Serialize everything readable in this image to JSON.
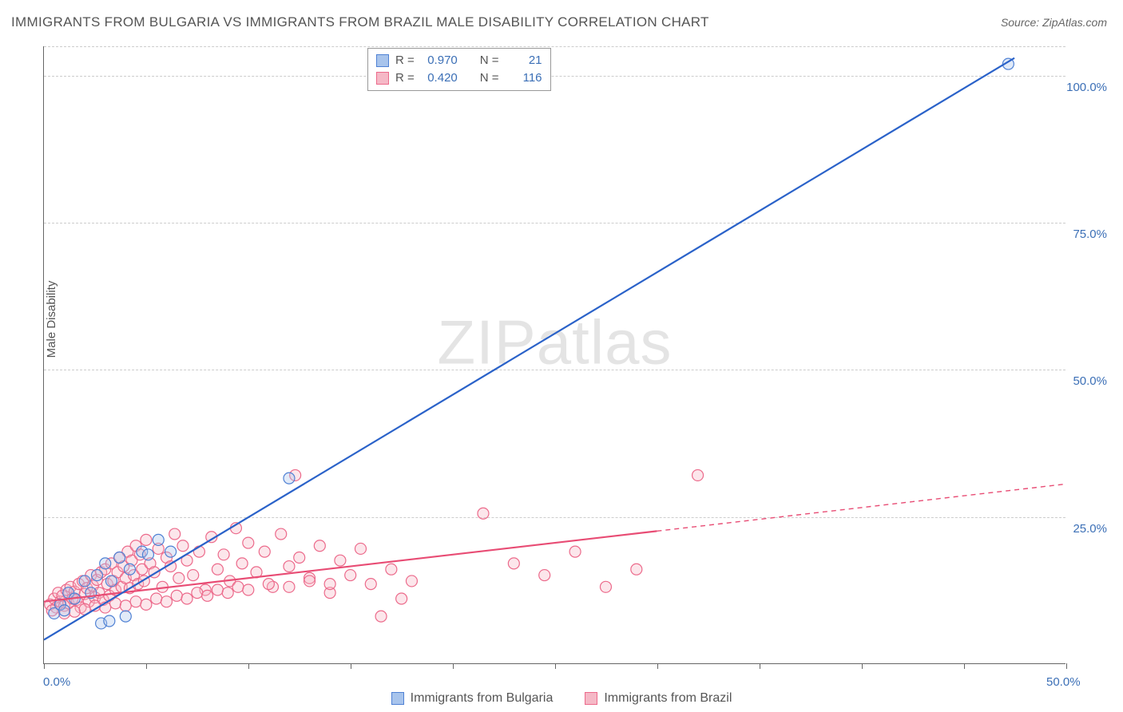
{
  "title": "IMMIGRANTS FROM BULGARIA VS IMMIGRANTS FROM BRAZIL MALE DISABILITY CORRELATION CHART",
  "source": "Source: ZipAtlas.com",
  "y_axis_label": "Male Disability",
  "watermark": "ZIPatlas",
  "chart": {
    "type": "scatter",
    "background_color": "#ffffff",
    "grid_color": "#cccccc",
    "axis_color": "#666666",
    "xlim": [
      0,
      50
    ],
    "ylim": [
      0,
      105
    ],
    "x_ticks": [
      0,
      5,
      10,
      15,
      20,
      25,
      30,
      35,
      40,
      45,
      50
    ],
    "x_tick_labels": {
      "0": "0.0%",
      "50": "50.0%"
    },
    "y_gridlines": [
      25,
      50,
      75,
      100,
      105
    ],
    "y_tick_labels": {
      "25": "25.0%",
      "50": "50.0%",
      "75": "75.0%",
      "100": "100.0%"
    },
    "marker_radius": 7,
    "marker_fill_opacity": 0.35,
    "marker_stroke_width": 1.2,
    "trend_line_width": 2.2
  },
  "series": {
    "bulgaria": {
      "label": "Immigrants from Bulgaria",
      "color_fill": "#a8c4ec",
      "color_stroke": "#4f81d4",
      "line_color": "#2a62c9",
      "R": "0.970",
      "N": "21",
      "trend": {
        "x1": 0,
        "y1": 4,
        "x2": 47.5,
        "y2": 103,
        "dashed_from": null
      },
      "points": [
        [
          0.5,
          8.5
        ],
        [
          0.8,
          10
        ],
        [
          1.0,
          9
        ],
        [
          1.2,
          12
        ],
        [
          1.5,
          11
        ],
        [
          2.0,
          14
        ],
        [
          2.3,
          12
        ],
        [
          2.6,
          15
        ],
        [
          3.0,
          17
        ],
        [
          3.3,
          14
        ],
        [
          3.7,
          18
        ],
        [
          4.2,
          16
        ],
        [
          4.8,
          19
        ],
        [
          5.1,
          18.5
        ],
        [
          5.6,
          21
        ],
        [
          6.2,
          19
        ],
        [
          2.8,
          6.8
        ],
        [
          3.2,
          7.2
        ],
        [
          4.0,
          8
        ],
        [
          12.0,
          31.5
        ],
        [
          47.2,
          102
        ]
      ]
    },
    "brazil": {
      "label": "Immigrants from Brazil",
      "color_fill": "#f5b8c6",
      "color_stroke": "#ec6a8b",
      "line_color": "#e84c74",
      "R": "0.420",
      "N": "116",
      "trend": {
        "x1": 0,
        "y1": 10.5,
        "x2": 50,
        "y2": 30.5,
        "dashed_from": 30
      },
      "points": [
        [
          0.3,
          10
        ],
        [
          0.5,
          11
        ],
        [
          0.6,
          9.5
        ],
        [
          0.7,
          12
        ],
        [
          0.8,
          10.5
        ],
        [
          0.9,
          11.5
        ],
        [
          1.0,
          9.8
        ],
        [
          1.1,
          12.5
        ],
        [
          1.2,
          10.2
        ],
        [
          1.3,
          13
        ],
        [
          1.4,
          11
        ],
        [
          1.5,
          12.2
        ],
        [
          1.6,
          10.8
        ],
        [
          1.7,
          13.5
        ],
        [
          1.8,
          9.5
        ],
        [
          1.9,
          14
        ],
        [
          2.0,
          11.8
        ],
        [
          2.1,
          12.8
        ],
        [
          2.2,
          10.5
        ],
        [
          2.3,
          15
        ],
        [
          2.4,
          13.2
        ],
        [
          2.5,
          11.2
        ],
        [
          2.6,
          14.2
        ],
        [
          2.7,
          12
        ],
        [
          2.8,
          15.5
        ],
        [
          2.9,
          10.8
        ],
        [
          3.0,
          16
        ],
        [
          3.1,
          13.5
        ],
        [
          3.2,
          11.5
        ],
        [
          3.3,
          17
        ],
        [
          3.4,
          14
        ],
        [
          3.5,
          12.5
        ],
        [
          3.6,
          15.5
        ],
        [
          3.7,
          18
        ],
        [
          3.8,
          13
        ],
        [
          3.9,
          16.5
        ],
        [
          4.0,
          14.5
        ],
        [
          4.1,
          19
        ],
        [
          4.2,
          12.8
        ],
        [
          4.3,
          17.5
        ],
        [
          4.4,
          15
        ],
        [
          4.5,
          20
        ],
        [
          4.6,
          13.5
        ],
        [
          4.7,
          18.5
        ],
        [
          4.8,
          16
        ],
        [
          4.9,
          14
        ],
        [
          5.0,
          21
        ],
        [
          5.2,
          17
        ],
        [
          5.4,
          15.5
        ],
        [
          5.6,
          19.5
        ],
        [
          5.8,
          13
        ],
        [
          6.0,
          18
        ],
        [
          6.2,
          16.5
        ],
        [
          6.4,
          22
        ],
        [
          6.6,
          14.5
        ],
        [
          6.8,
          20
        ],
        [
          7.0,
          17.5
        ],
        [
          7.3,
          15
        ],
        [
          7.6,
          19
        ],
        [
          7.9,
          12.5
        ],
        [
          8.2,
          21.5
        ],
        [
          8.5,
          16
        ],
        [
          8.8,
          18.5
        ],
        [
          9.1,
          14
        ],
        [
          9.4,
          23
        ],
        [
          9.7,
          17
        ],
        [
          10.0,
          20.5
        ],
        [
          10.4,
          15.5
        ],
        [
          10.8,
          19
        ],
        [
          11.2,
          13
        ],
        [
          11.6,
          22
        ],
        [
          12.0,
          16.5
        ],
        [
          12.3,
          32
        ],
        [
          12.5,
          18
        ],
        [
          13.0,
          14.5
        ],
        [
          13.5,
          20
        ],
        [
          14.0,
          12
        ],
        [
          14.5,
          17.5
        ],
        [
          15.0,
          15
        ],
        [
          15.5,
          19.5
        ],
        [
          16.0,
          13.5
        ],
        [
          16.5,
          8
        ],
        [
          17.0,
          16
        ],
        [
          17.5,
          11
        ],
        [
          18.0,
          14
        ],
        [
          1.0,
          8.5
        ],
        [
          1.5,
          8.8
        ],
        [
          2.0,
          9.2
        ],
        [
          2.5,
          9.8
        ],
        [
          3.0,
          9.5
        ],
        [
          3.5,
          10.2
        ],
        [
          4.0,
          9.8
        ],
        [
          4.5,
          10.5
        ],
        [
          5.0,
          10
        ],
        [
          5.5,
          11
        ],
        [
          6.0,
          10.5
        ],
        [
          6.5,
          11.5
        ],
        [
          7.0,
          11
        ],
        [
          7.5,
          12
        ],
        [
          8.0,
          11.5
        ],
        [
          8.5,
          12.5
        ],
        [
          9.0,
          12
        ],
        [
          9.5,
          13
        ],
        [
          10.0,
          12.5
        ],
        [
          11.0,
          13.5
        ],
        [
          12.0,
          13
        ],
        [
          13.0,
          14
        ],
        [
          14.0,
          13.5
        ],
        [
          21.5,
          25.5
        ],
        [
          23.0,
          17
        ],
        [
          24.5,
          15
        ],
        [
          26.0,
          19
        ],
        [
          27.5,
          13
        ],
        [
          29.0,
          16
        ],
        [
          32.0,
          32
        ],
        [
          0.4,
          9
        ]
      ]
    }
  },
  "stats_legend": {
    "r_label": "R =",
    "n_label": "N ="
  },
  "bottom_legend": {
    "items": [
      "bulgaria",
      "brazil"
    ]
  }
}
